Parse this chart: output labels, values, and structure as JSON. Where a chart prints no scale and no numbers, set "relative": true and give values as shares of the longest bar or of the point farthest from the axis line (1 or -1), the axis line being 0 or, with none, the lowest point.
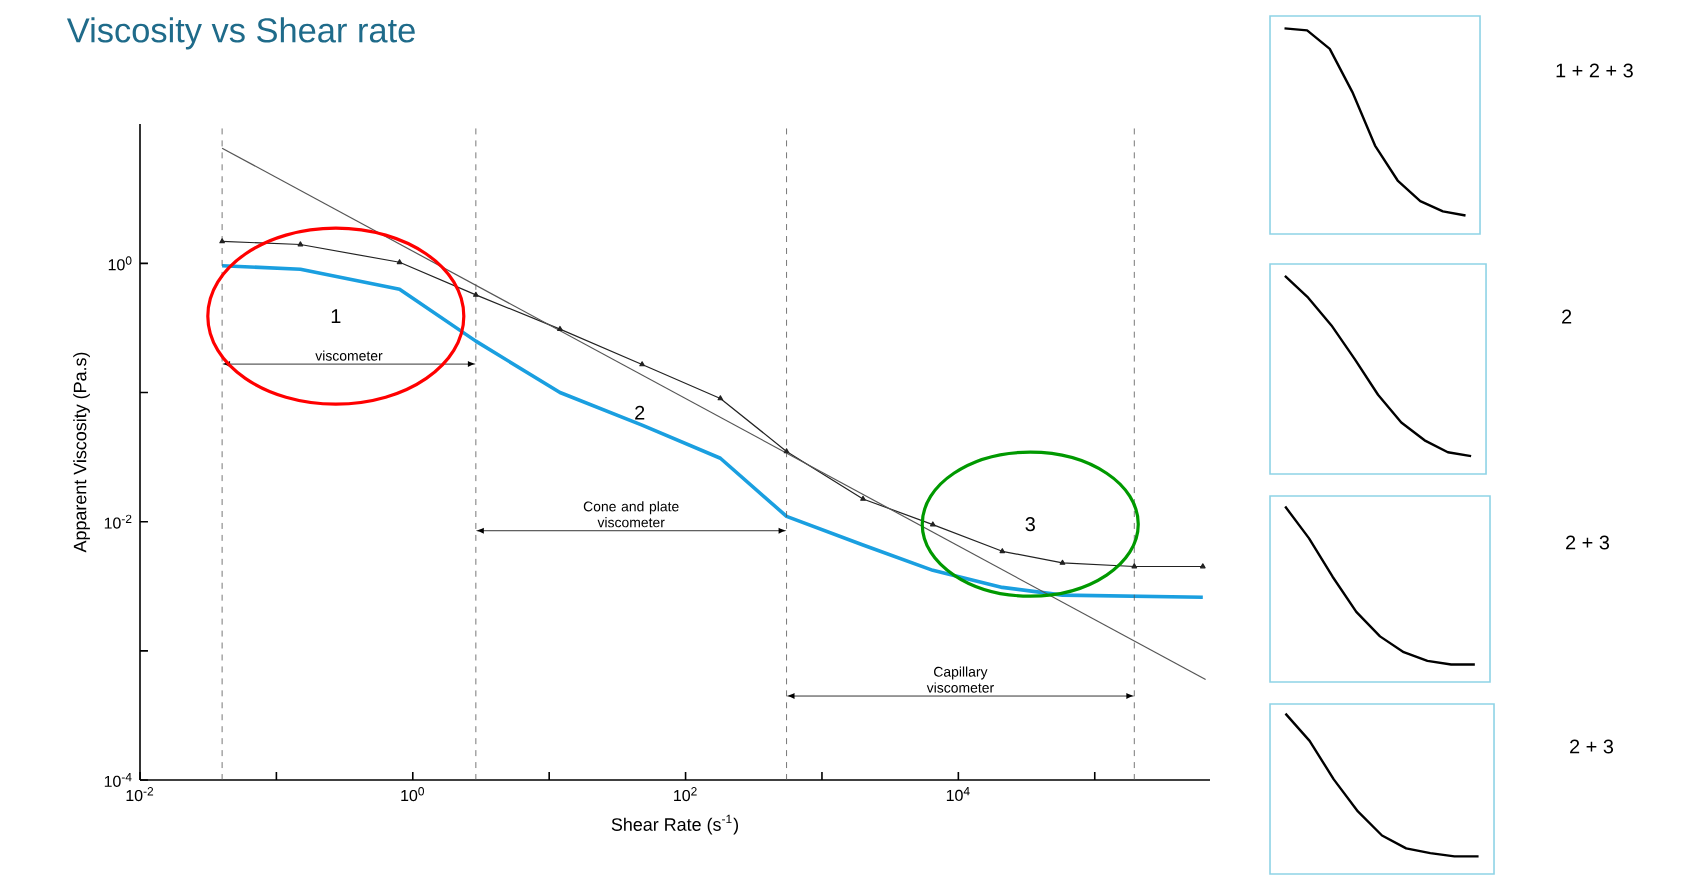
{
  "chart_data": [
    {
      "type": "line",
      "title": "Viscosity vs Shear rate",
      "xlabel": "Shear Rate (s$^{-1}$)",
      "ylabel": "Apparent Viscosity (Pa.s)",
      "log": "xy",
      "xlim": [
        0.01,
        700000
      ],
      "ylim": [
        0.0001,
        12
      ],
      "xticks": [
        {
          "value": 0.01,
          "label": "10$^{-2}$"
        },
        {
          "value": 0.1,
          "label": null
        },
        {
          "value": 1,
          "label": "10$^{0}$"
        },
        {
          "value": 10,
          "label": null
        },
        {
          "value": 100,
          "label": "10$^{2}$"
        },
        {
          "value": 1000,
          "label": null
        },
        {
          "value": 10000,
          "label": "10$^{4}$"
        },
        {
          "value": 100000,
          "label": null
        }
      ],
      "yticks": [
        {
          "value": 0.0001,
          "label": "10$^{-4}$"
        },
        {
          "value": 0.001,
          "label": null
        },
        {
          "value": 0.01,
          "label": "10$^{-2}$"
        },
        {
          "value": 0.1,
          "label": null
        },
        {
          "value": 1,
          "label": "10$^{0}$"
        }
      ],
      "series": [
        {
          "color": "#222222",
          "marker": "triangle",
          "x": [
            0.04,
            0.15,
            0.8,
            2.9,
            12,
            48,
            180,
            550,
            2000,
            6500,
            21000,
            58000,
            195000,
            620000
          ],
          "values": [
            1.48,
            1.4,
            1.02,
            0.57,
            0.31,
            0.165,
            0.09,
            0.035,
            0.015,
            0.0095,
            0.0059,
            0.0048,
            0.0045,
            0.0045
          ]
        },
        {
          "color": "#1a9fe0",
          "marker": "none",
          "x": [
            0.04,
            0.15,
            0.8,
            2.9,
            12,
            48,
            180,
            550,
            2000,
            6500,
            21000,
            58000,
            620000
          ],
          "values": [
            0.96,
            0.9,
            0.63,
            0.25,
            0.1,
            0.056,
            0.031,
            0.011,
            0.0066,
            0.0042,
            0.0031,
            0.0027,
            0.0026
          ]
        },
        {
          "color": "#555555",
          "marker": "none",
          "x": [
            0.04,
            650000
          ],
          "values": [
            7.8,
            0.0006
          ]
        }
      ],
      "ref_lines": [
        {
          "axis": "x",
          "value": 0.04,
          "color": "#555555",
          "line_style": "dashed"
        },
        {
          "axis": "x",
          "value": 2.9,
          "color": "#555555",
          "line_style": "dashed"
        },
        {
          "axis": "x",
          "value": 550,
          "color": "#555555",
          "line_style": "dashed"
        },
        {
          "axis": "x",
          "value": 195000,
          "color": "#555555",
          "line_style": "dashed"
        }
      ],
      "annotations": [
        "1",
        "2",
        "3",
        "viscometer",
        "Cone and plate viscometer",
        "Capillary viscometer"
      ]
    },
    {
      "type": "line",
      "relative": true,
      "categories": [
        null,
        null,
        null,
        null,
        null,
        null,
        null,
        null,
        null
      ],
      "series": [
        {
          "color": "#000000",
          "values": [
            1.0,
            0.99,
            0.9,
            0.69,
            0.43,
            0.26,
            0.16,
            0.11,
            0.09
          ]
        }
      ],
      "annotations": [
        "1 + 2 + 3"
      ]
    },
    {
      "type": "line",
      "relative": true,
      "categories": [
        null,
        null,
        null,
        null,
        null,
        null,
        null,
        null,
        null
      ],
      "series": [
        {
          "color": "#000000",
          "values": [
            1.0,
            0.89,
            0.75,
            0.58,
            0.4,
            0.26,
            0.17,
            0.11,
            0.09
          ]
        }
      ],
      "annotations": [
        "2"
      ]
    },
    {
      "type": "line",
      "relative": true,
      "categories": [
        null,
        null,
        null,
        null,
        null,
        null,
        null,
        null,
        null
      ],
      "series": [
        {
          "color": "#000000",
          "values": [
            1.0,
            0.82,
            0.6,
            0.4,
            0.26,
            0.17,
            0.12,
            0.1,
            0.1
          ]
        }
      ],
      "annotations": [
        "2 + 3"
      ]
    },
    {
      "type": "line",
      "relative": true,
      "categories": [
        null,
        null,
        null,
        null,
        null,
        null,
        null,
        null,
        null
      ],
      "series": [
        {
          "color": "#000000",
          "values": [
            1.0,
            0.83,
            0.59,
            0.39,
            0.24,
            0.16,
            0.13,
            0.11,
            0.11
          ]
        }
      ],
      "annotations": [
        "2 + 3"
      ]
    }
  ]
}
